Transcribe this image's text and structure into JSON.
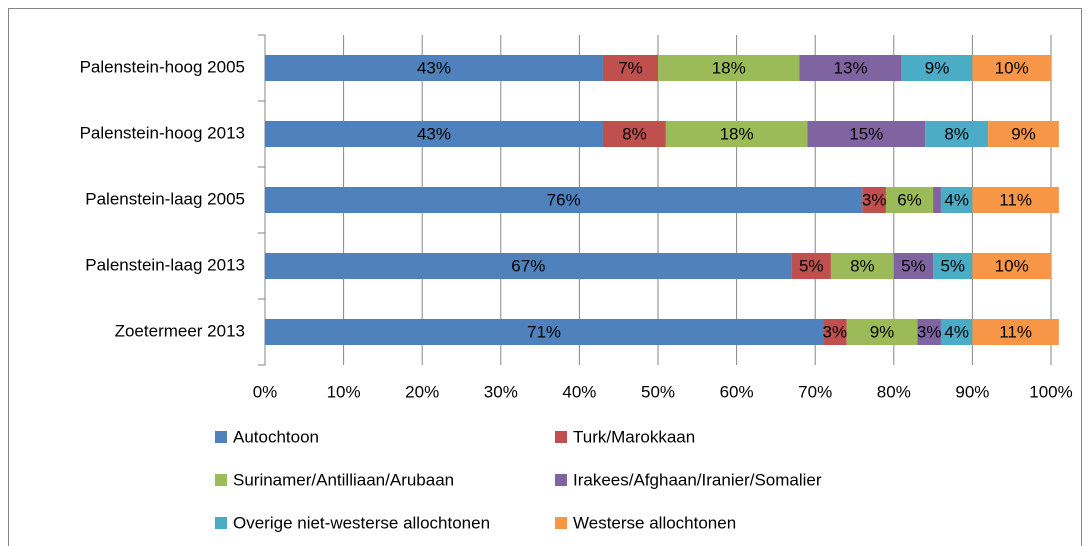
{
  "chart_data": {
    "type": "stacked_bar_horizontal",
    "categories": [
      "Palenstein-hoog 2005",
      "Palenstein-hoog 2013",
      "Palenstein-laag 2005",
      "Palenstein-laag 2013",
      "Zoetermeer 2013"
    ],
    "series": [
      {
        "name": "Autochtoon",
        "color": "#4f81bd",
        "values": [
          43,
          43,
          76,
          67,
          71
        ],
        "value_labels": [
          "43%",
          "43%",
          "76%",
          "67%",
          "71%"
        ]
      },
      {
        "name": "Turk/Marokkaan",
        "color": "#c0504d",
        "values": [
          7,
          8,
          3,
          5,
          3
        ],
        "value_labels": [
          "7%",
          "8%",
          "3%",
          "5%",
          "3%"
        ]
      },
      {
        "name": "Surinamer/Antilliaan/Arubaan",
        "color": "#9bbb59",
        "values": [
          18,
          18,
          6,
          8,
          9
        ],
        "value_labels": [
          "18%",
          "18%",
          "6%",
          "8%",
          "9%"
        ]
      },
      {
        "name": "Irakees/Afghaan/Iranier/Somalier",
        "color": "#8064a2",
        "values": [
          13,
          15,
          1,
          5,
          3
        ],
        "value_labels": [
          "13%",
          "15%",
          null,
          "5%",
          "3%"
        ]
      },
      {
        "name": "Overige niet-westerse allochtonen",
        "color": "#4bacc6",
        "values": [
          9,
          8,
          4,
          5,
          4
        ],
        "value_labels": [
          "9%",
          "8%",
          "4%",
          "5%",
          "4%"
        ]
      },
      {
        "name": "Westerse allochtonen",
        "color": "#f79646",
        "values": [
          10,
          9,
          11,
          10,
          11
        ],
        "value_labels": [
          "10%",
          "9%",
          "11%",
          "10%",
          "11%"
        ]
      }
    ],
    "xlim": [
      0,
      100
    ],
    "xticks": [
      {
        "value": 0,
        "label": "0%"
      },
      {
        "value": 10,
        "label": "10%"
      },
      {
        "value": 20,
        "label": "20%"
      },
      {
        "value": 30,
        "label": "30%"
      },
      {
        "value": 40,
        "label": "40%"
      },
      {
        "value": 50,
        "label": "50%"
      },
      {
        "value": 60,
        "label": "60%"
      },
      {
        "value": 70,
        "label": "70%"
      },
      {
        "value": 80,
        "label": "80%"
      },
      {
        "value": 90,
        "label": "90%"
      },
      {
        "value": 100,
        "label": "100%"
      }
    ],
    "grid": true,
    "legend": "bottom"
  }
}
